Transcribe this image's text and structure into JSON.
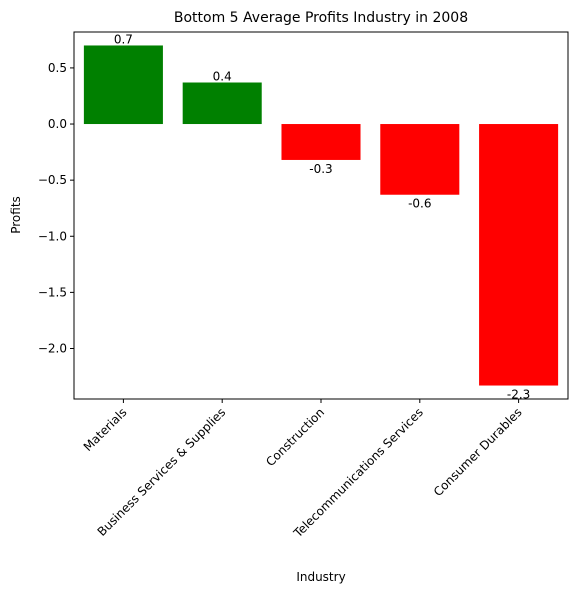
{
  "chart_data": {
    "type": "bar",
    "title": "Bottom 5 Average Profits Industry in 2008",
    "xlabel": "Industry",
    "ylabel": "Profits",
    "categories": [
      "Materials",
      "Business Services & Supplies",
      "Construction",
      "Telecommunications Services",
      "Consumer Durables"
    ],
    "values": [
      0.7,
      0.37,
      -0.32,
      -0.63,
      -2.33
    ],
    "value_labels": [
      "0.7",
      "0.4",
      "-0.3",
      "-0.6",
      "-2.3"
    ],
    "bar_colors": [
      "#008000",
      "#008000",
      "#ff0000",
      "#ff0000",
      "#ff0000"
    ],
    "ylim": [
      -2.45,
      0.82
    ],
    "yticks": [
      0.5,
      0.0,
      -0.5,
      -1.0,
      -1.5,
      -2.0
    ],
    "ytick_labels": [
      "0.5",
      "0.0",
      "−0.5",
      "−1.0",
      "−1.5",
      "−2.0"
    ],
    "grid": false,
    "legend": "none"
  }
}
